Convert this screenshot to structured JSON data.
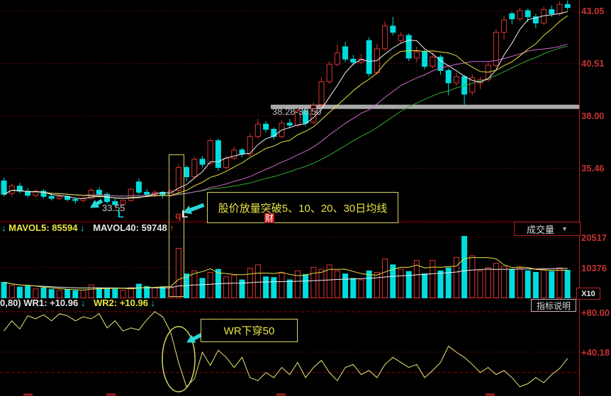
{
  "axis": {
    "price_labels": [
      "43.05",
      "40.51",
      "38.00",
      "35.46"
    ],
    "volume_labels": [
      "20517",
      "10376"
    ],
    "wr_labels": [
      "+80.00",
      "+40.18"
    ]
  },
  "volume_panel": {
    "legend_prefix": "↓",
    "mavol5_label": "MAVOL5:",
    "mavol5_value": "85594",
    "mavol5_arrow": "↓",
    "mavol40_label": "MAVOL40:",
    "mavol40_value": "59748",
    "mavol40_arrow": "↑",
    "selector_label": "成交量",
    "unit_label": "X10"
  },
  "wr_panel": {
    "legend_prefix": "0,80)",
    "wr1_label": "WR1:",
    "wr1_value": "+10.96",
    "wr1_arrow": "↓",
    "wr2_label": "WR2:",
    "wr2_value": "+10.96",
    "wr2_arrow": "↓",
    "button_label": "指标说明"
  },
  "annotations": {
    "breakout_text": "股价放量突破5、10、20、30日均线",
    "wr_cross_text": "WR下穿50",
    "watermark": "财",
    "marker_q": "q",
    "marker_l": "L",
    "low_label": "33.55",
    "low_marker": "L",
    "band_label": "38.28-38.50"
  },
  "chart_data": {
    "type": "candlestick",
    "panels": [
      "price",
      "volume",
      "wr"
    ],
    "price_axis_ticks": [
      43.05,
      40.51,
      38.0,
      35.46
    ],
    "volume_axis_ticks": [
      20517,
      10376
    ],
    "wr_axis_ticks": [
      80.0,
      40.18
    ],
    "wr_params": "(0,80)",
    "volume_unit_multiplier": "X10",
    "ma_periods": [
      5,
      10,
      20,
      30
    ],
    "resistance_band": {
      "label": "38.28-38.50",
      "low": 38.28,
      "high": 38.5
    },
    "low_point": {
      "price": 33.55,
      "index": 14
    },
    "breakout_index": 22,
    "legend_values": {
      "mavol5": 85594,
      "mavol40": 59748,
      "wr1": 10.96,
      "wr2": 10.96
    },
    "candles": [
      [
        34.8,
        34.95,
        34.05,
        34.15,
        5200
      ],
      [
        34.2,
        34.65,
        34.05,
        34.55,
        4100
      ],
      [
        34.55,
        34.7,
        34.2,
        34.3,
        3600
      ],
      [
        34.3,
        34.45,
        34.0,
        34.1,
        3900
      ],
      [
        34.1,
        34.4,
        34.0,
        34.3,
        3000
      ],
      [
        34.3,
        34.4,
        33.95,
        34.05,
        3300
      ],
      [
        34.05,
        34.2,
        33.85,
        33.95,
        2800
      ],
      [
        33.95,
        34.15,
        33.85,
        34.05,
        2500
      ],
      [
        34.05,
        34.1,
        33.8,
        33.9,
        2700
      ],
      [
        33.9,
        34.0,
        33.7,
        33.85,
        2400
      ],
      [
        33.85,
        34.05,
        33.75,
        33.95,
        2600
      ],
      [
        33.95,
        34.45,
        33.9,
        34.35,
        4300
      ],
      [
        34.35,
        34.5,
        34.05,
        34.15,
        3200
      ],
      [
        34.15,
        34.25,
        33.7,
        33.8,
        3000
      ],
      [
        33.8,
        33.95,
        33.55,
        33.65,
        2900
      ],
      [
        33.65,
        33.9,
        33.6,
        33.85,
        2500
      ],
      [
        33.85,
        34.45,
        33.8,
        34.4,
        3400
      ],
      [
        34.75,
        34.9,
        34.15,
        34.25,
        4600
      ],
      [
        34.25,
        34.4,
        34.05,
        34.15,
        3800
      ],
      [
        34.15,
        34.35,
        34.0,
        34.25,
        3300
      ],
      [
        34.25,
        34.3,
        33.95,
        34.1,
        3500
      ],
      [
        34.1,
        34.4,
        34.0,
        34.3,
        3700
      ],
      [
        34.35,
        35.6,
        34.2,
        35.45,
        16500
      ],
      [
        35.45,
        35.55,
        34.8,
        35.0,
        8000
      ],
      [
        35.0,
        35.95,
        34.9,
        35.85,
        9000
      ],
      [
        35.85,
        36.0,
        35.45,
        35.6,
        6500
      ],
      [
        35.65,
        36.85,
        35.55,
        36.75,
        8500
      ],
      [
        36.75,
        36.85,
        35.3,
        35.45,
        9500
      ],
      [
        35.45,
        36.0,
        35.35,
        35.9,
        7000
      ],
      [
        35.9,
        36.45,
        35.8,
        36.3,
        7500
      ],
      [
        36.3,
        36.4,
        35.95,
        36.1,
        6000
      ],
      [
        36.1,
        37.1,
        36.0,
        36.95,
        9800
      ],
      [
        36.95,
        37.8,
        36.85,
        37.55,
        11000
      ],
      [
        37.55,
        37.7,
        37.15,
        37.3,
        7000
      ],
      [
        37.3,
        37.4,
        36.8,
        36.95,
        6800
      ],
      [
        36.95,
        37.75,
        36.85,
        37.6,
        8200
      ],
      [
        37.6,
        37.8,
        37.35,
        37.5,
        6000
      ],
      [
        37.5,
        38.35,
        37.4,
        38.2,
        9000
      ],
      [
        38.2,
        38.3,
        37.45,
        37.6,
        7800
      ],
      [
        37.65,
        38.6,
        37.55,
        38.45,
        10200
      ],
      [
        38.5,
        39.8,
        38.4,
        39.6,
        9500
      ],
      [
        39.6,
        40.6,
        39.5,
        40.45,
        11000
      ],
      [
        40.45,
        41.4,
        40.35,
        41.0,
        9000
      ],
      [
        41.3,
        41.55,
        40.55,
        40.7,
        8000
      ],
      [
        40.7,
        40.9,
        40.4,
        40.55,
        6500
      ],
      [
        40.55,
        40.95,
        40.45,
        40.7,
        6000
      ],
      [
        41.6,
        41.75,
        39.85,
        40.0,
        9000
      ],
      [
        40.05,
        41.45,
        39.95,
        41.2,
        8500
      ],
      [
        41.2,
        42.55,
        41.1,
        42.3,
        13000
      ],
      [
        42.3,
        42.75,
        41.85,
        42.0,
        11000
      ],
      [
        41.6,
        42.0,
        41.45,
        41.85,
        9500
      ],
      [
        41.85,
        41.95,
        40.6,
        40.75,
        8800
      ],
      [
        40.75,
        41.3,
        40.55,
        41.05,
        12500
      ],
      [
        41.05,
        41.15,
        40.2,
        40.35,
        8000
      ],
      [
        40.35,
        41.0,
        40.25,
        40.8,
        12500
      ],
      [
        40.8,
        40.9,
        39.95,
        40.15,
        9000
      ],
      [
        40.15,
        40.25,
        38.95,
        39.55,
        10000
      ],
      [
        39.55,
        40.05,
        39.4,
        39.85,
        13500
      ],
      [
        39.85,
        39.95,
        38.45,
        39.0,
        20500
      ],
      [
        39.1,
        39.95,
        38.95,
        39.8,
        14000
      ],
      [
        39.55,
        39.85,
        39.25,
        39.7,
        9000
      ],
      [
        39.7,
        40.55,
        39.6,
        40.4,
        10000
      ],
      [
        40.4,
        42.15,
        40.3,
        42.0,
        11500
      ],
      [
        42.0,
        42.8,
        41.65,
        42.6,
        10500
      ],
      [
        42.9,
        43.0,
        42.4,
        42.65,
        9500
      ],
      [
        42.65,
        43.2,
        42.55,
        43.05,
        10000
      ],
      [
        43.05,
        43.15,
        42.5,
        42.75,
        9000
      ],
      [
        42.75,
        42.9,
        42.2,
        42.45,
        8500
      ],
      [
        42.45,
        43.25,
        42.35,
        43.1,
        9500
      ],
      [
        43.1,
        43.3,
        42.75,
        42.9,
        8800
      ],
      [
        42.9,
        43.5,
        42.8,
        43.35,
        10000
      ],
      [
        43.35,
        43.55,
        43.05,
        43.2,
        9200
      ]
    ],
    "wr": [
      61,
      71,
      63,
      76,
      73,
      77,
      71,
      78,
      76,
      71,
      75,
      73,
      78,
      64,
      71,
      61,
      64,
      62,
      72,
      80,
      75,
      60,
      30,
      6,
      14,
      40,
      27,
      42,
      35,
      25,
      35,
      15,
      12,
      20,
      15,
      25,
      18,
      30,
      15,
      25,
      32,
      20,
      12,
      25,
      28,
      18,
      22,
      15,
      28,
      35,
      30,
      25,
      28,
      15,
      22,
      30,
      46,
      40,
      35,
      28,
      20,
      25,
      18,
      22,
      15,
      6,
      9,
      15,
      10,
      18,
      24,
      34
    ],
    "colors": {
      "up": "#dd3434",
      "down": "#00dddd",
      "ma5": "#f0f0f0",
      "ma10": "#e8e440",
      "ma20": "#cc66cc",
      "ma30": "#33aa33",
      "mavol5": "#e8e440",
      "mavol40": "#f0f0f0",
      "wr_line": "#e8e878",
      "grid": "#7e1515",
      "separator": "#8b0000",
      "axis_line": "#b02222",
      "band": "#aaaaaa",
      "highlight": "#d8d460",
      "annotation": "#e8e448"
    }
  }
}
